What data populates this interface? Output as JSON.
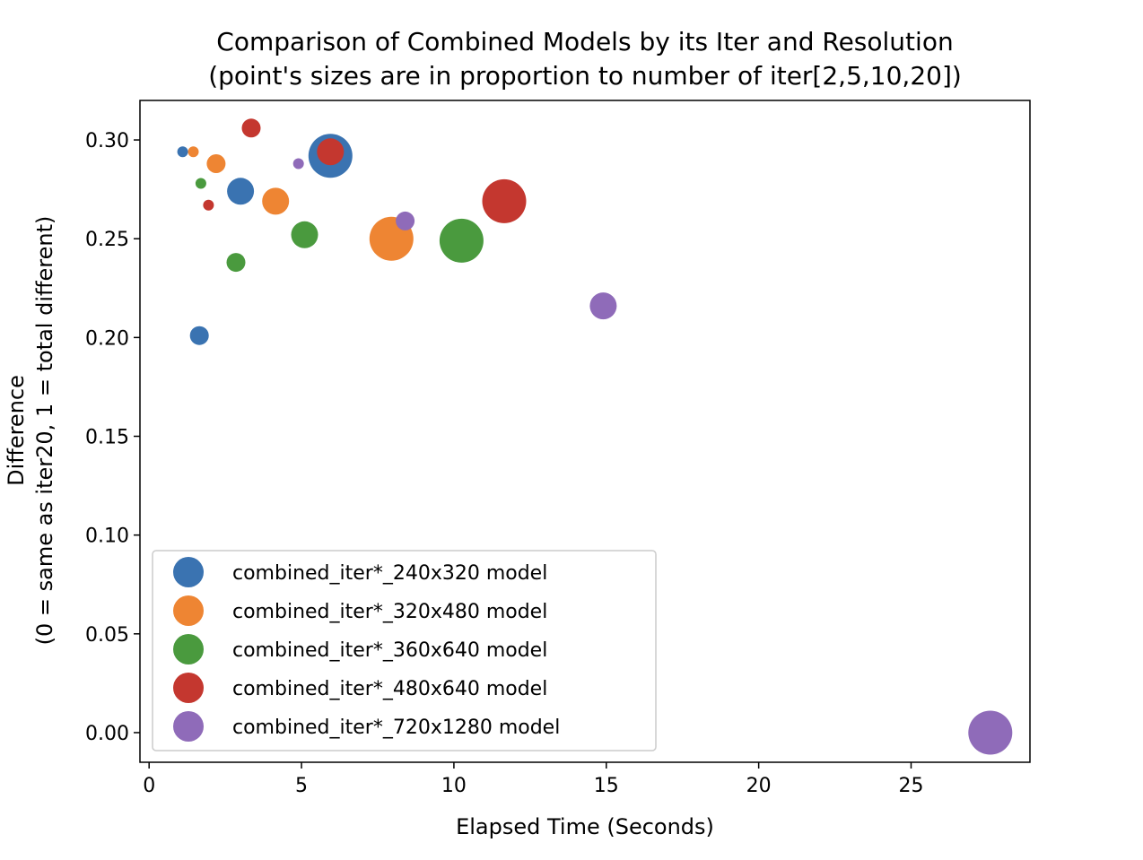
{
  "chart_data": {
    "type": "scatter",
    "title": [
      "Comparison of Combined Models by its Iter and Resolution",
      "(point's sizes are in proportion to number of iter[2,5,10,20])"
    ],
    "xlabel": "Elapsed Time (Seconds)",
    "ylabel": [
      "Difference",
      "(0 = same as iter20, 1 = total different)"
    ],
    "xlim": [
      -0.3,
      28.9
    ],
    "ylim": [
      -0.015,
      0.32
    ],
    "xticks": [
      0,
      5,
      10,
      15,
      20,
      25
    ],
    "yticks": [
      0.0,
      0.05,
      0.1,
      0.15,
      0.2,
      0.25,
      0.3
    ],
    "ytick_labels": [
      "0.00",
      "0.05",
      "0.10",
      "0.15",
      "0.20",
      "0.25",
      "0.30"
    ],
    "size_by_iter": [
      2,
      5,
      10,
      20
    ],
    "grid": false,
    "legend_position": "lower-left",
    "series": [
      {
        "name": "combined_iter*_240x320 model",
        "color": "#3a73b1",
        "points": [
          {
            "iter": 2,
            "x": 1.1,
            "y": 0.294
          },
          {
            "iter": 5,
            "x": 1.65,
            "y": 0.201
          },
          {
            "iter": 10,
            "x": 3.0,
            "y": 0.274
          },
          {
            "iter": 20,
            "x": 5.95,
            "y": 0.292
          }
        ]
      },
      {
        "name": "combined_iter*_320x480 model",
        "color": "#ee8533",
        "points": [
          {
            "iter": 2,
            "x": 1.45,
            "y": 0.294
          },
          {
            "iter": 5,
            "x": 2.2,
            "y": 0.288
          },
          {
            "iter": 10,
            "x": 4.15,
            "y": 0.269
          },
          {
            "iter": 20,
            "x": 7.95,
            "y": 0.25
          }
        ]
      },
      {
        "name": "combined_iter*_360x640 model",
        "color": "#4a9a3e",
        "points": [
          {
            "iter": 2,
            "x": 1.7,
            "y": 0.278
          },
          {
            "iter": 5,
            "x": 2.85,
            "y": 0.238
          },
          {
            "iter": 10,
            "x": 5.1,
            "y": 0.252
          },
          {
            "iter": 20,
            "x": 10.25,
            "y": 0.249
          }
        ]
      },
      {
        "name": "combined_iter*_480x640 model",
        "color": "#c4372f",
        "points": [
          {
            "iter": 2,
            "x": 1.95,
            "y": 0.267
          },
          {
            "iter": 5,
            "x": 3.35,
            "y": 0.306
          },
          {
            "iter": 10,
            "x": 5.95,
            "y": 0.294
          },
          {
            "iter": 20,
            "x": 11.65,
            "y": 0.269
          }
        ]
      },
      {
        "name": "combined_iter*_720x1280 model",
        "color": "#8f6bb9",
        "points": [
          {
            "iter": 2,
            "x": 4.9,
            "y": 0.288
          },
          {
            "iter": 5,
            "x": 8.4,
            "y": 0.259
          },
          {
            "iter": 10,
            "x": 14.9,
            "y": 0.216
          },
          {
            "iter": 20,
            "x": 27.6,
            "y": 0.0
          }
        ]
      }
    ]
  }
}
